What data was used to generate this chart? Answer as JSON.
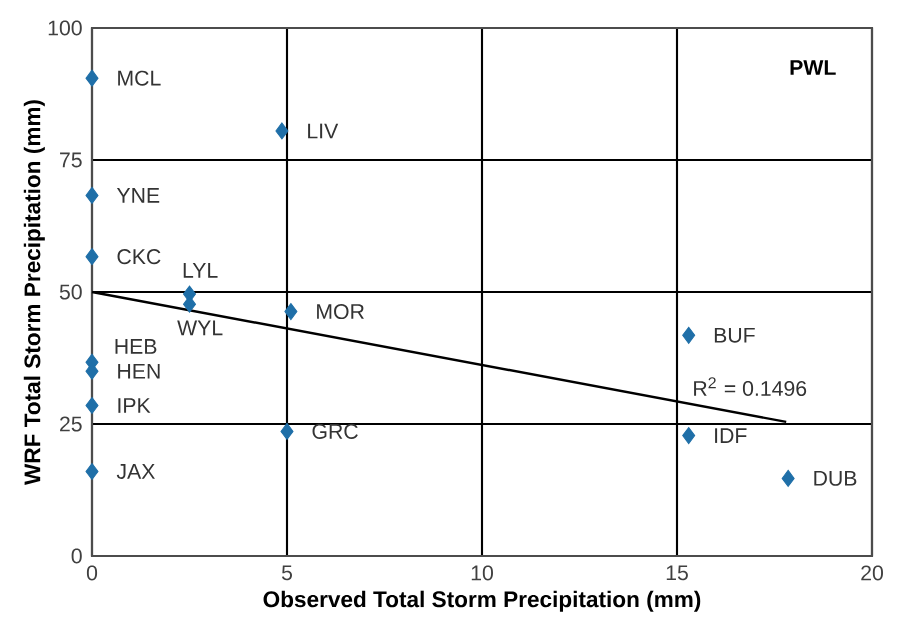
{
  "chart_data": {
    "type": "scatter",
    "xlabel": "Observed Total Storm Precipitation (mm)",
    "ylabel": "WRF Total Storm Precipitation (mm)",
    "xlim": [
      0,
      20
    ],
    "xticks": [
      0,
      5,
      10,
      15,
      20
    ],
    "ylim": [
      0,
      100
    ],
    "yticks": [
      0,
      25,
      50,
      75,
      100
    ],
    "grid": true,
    "marker": "diamond",
    "series": [
      {
        "color": "#1f6fa8",
        "x": [
          0,
          4.87,
          0,
          0,
          2.5,
          2.5,
          5.1,
          0,
          0,
          0,
          0,
          5.0,
          15.3,
          15.3,
          17.85
        ],
        "values": [
          90.5,
          80.5,
          68.3,
          56.7,
          49.6,
          47.7,
          46.3,
          36.7,
          35,
          28.5,
          16,
          23.6,
          41.8,
          22.8,
          14.7
        ]
      },
      {
        "type": "line",
        "color": "#000000",
        "marker": "none",
        "x": [
          0,
          17.8
        ],
        "values": [
          50,
          25.4
        ]
      }
    ],
    "annotations": [
      {
        "text": "MCL",
        "x": 0,
        "y": 90.5
      },
      {
        "text": "LIV",
        "x": 4.87,
        "y": 80.5
      },
      {
        "text": "YNE",
        "x": 0,
        "y": 68.3
      },
      {
        "text": "CKC",
        "x": 0,
        "y": 56.7
      },
      {
        "text": "LYL",
        "x": 2.5,
        "y": 49.6
      },
      {
        "text": "WYL",
        "x": 2.5,
        "y": 47.7
      },
      {
        "text": "MOR",
        "x": 5.1,
        "y": 46.3
      },
      {
        "text": "HEB",
        "x": 0,
        "y": 36.7
      },
      {
        "text": "HEN",
        "x": 0,
        "y": 35
      },
      {
        "text": "IPK",
        "x": 0,
        "y": 28.5
      },
      {
        "text": "JAX",
        "x": 0,
        "y": 16
      },
      {
        "text": "GRC",
        "x": 5.0,
        "y": 23.6
      },
      {
        "text": "BUF",
        "x": 15.3,
        "y": 41.8
      },
      {
        "text": "R$^{2}$ = 0.1496",
        "x": 15.38,
        "y": 28.7
      },
      {
        "text": "IDF",
        "x": 15.3,
        "y": 22.8
      },
      {
        "text": "DUB",
        "x": 17.85,
        "y": 14.7
      },
      "PWL"
    ]
  }
}
